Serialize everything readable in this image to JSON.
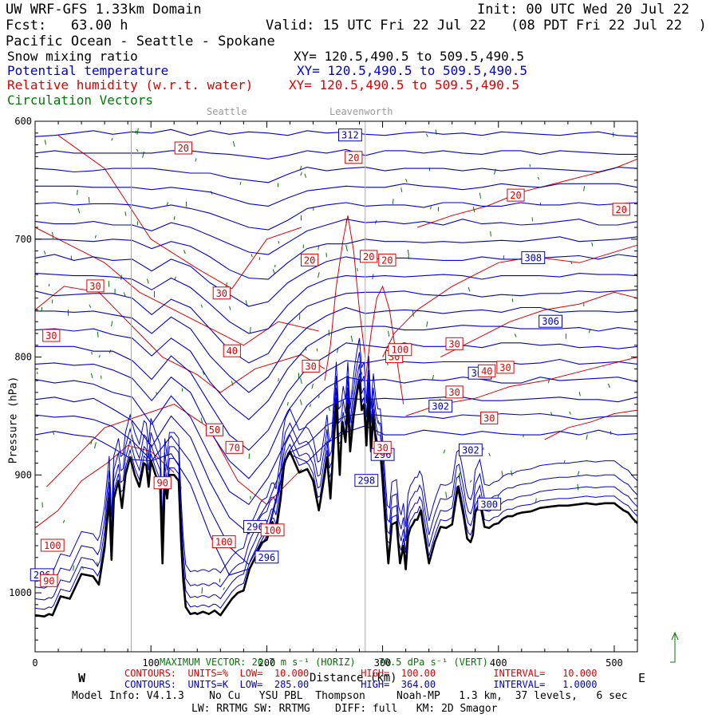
{
  "header": {
    "title": "UW WRF-GFS 1.33km Domain",
    "init": "Init: 00 UTC Wed 20 Jul 22",
    "fcst": "Fcst:   63.00 h",
    "valid": "Valid: 15 UTC Fri 22 Jul 22   (08 PDT Fri 22 Jul 22  )",
    "region": "Pacific Ocean - Seattle - Spokane",
    "fields": [
      {
        "name": "Snow mixing ratio",
        "xy": "XY= 120.5,490.5 to 509.5,490.5",
        "color": "#000000"
      },
      {
        "name": "Potential temperature",
        "xy": "XY= 120.5,490.5 to 509.5,490.5",
        "color": "#0000cc"
      },
      {
        "name": "Relative humidity (w.r.t. water)",
        "xy": "XY= 120.5,490.5 to 509.5,490.5",
        "color": "#dd0000"
      },
      {
        "name": "Circulation Vectors",
        "xy": "",
        "color": "#007700"
      }
    ]
  },
  "markers": [
    {
      "label": "Seattle",
      "x": 83
    },
    {
      "label": "Leavenworth",
      "x": 285
    }
  ],
  "compass": {
    "west": "W",
    "east": "E"
  },
  "colors": {
    "theta": "#0000cc",
    "rh": "#dd0000",
    "vectors": "#007700",
    "terrain": "#000000",
    "marker": "#aaaaaa"
  },
  "footer": {
    "max_vector": "MAXIMUM VECTOR: 20.7 m s⁻¹ (HORIZ)    70.5 dPa s⁻¹ (VERT)",
    "rh_contours": "CONTOURS:  UNITS=%  LOW=  10.000         HIGH=  100.00          INTERVAL=   10.000",
    "theta_contours": "CONTOURS:  UNITS=K  LOW=  285.00         HIGH=  364.00          INTERVAL=   1.0000",
    "model_info": "Model Info: V4.1.3    No Cu   YSU PBL  Thompson     Noah-MP   1.3 km,  37 levels,   6 sec",
    "physics": "LW: RRTMG SW: RRTMG    DIFF: full   KM: 2D Smagor"
  },
  "chart_data": {
    "type": "cross-section",
    "xlabel": "Distance (km)",
    "ylabel": "Pressure (hPa)",
    "xlim": [
      0,
      520
    ],
    "ylim": [
      1050,
      600
    ],
    "y_log": false,
    "x_ticks": [
      0,
      100,
      200,
      300,
      400,
      500
    ],
    "y_ticks": [
      600,
      700,
      800,
      900,
      1000
    ],
    "grid": false,
    "terrain": {
      "x": [
        0,
        8,
        12,
        15,
        22,
        30,
        40,
        50,
        55,
        60,
        64,
        66,
        68,
        72,
        75,
        78,
        82,
        86,
        90,
        94,
        96,
        98,
        100,
        104,
        108,
        110,
        112,
        114,
        116,
        120,
        124,
        126,
        128,
        130,
        134,
        138,
        140,
        145,
        150,
        155,
        160,
        165,
        170,
        175,
        180,
        185,
        190,
        195,
        200,
        205,
        208,
        212,
        215,
        220,
        228,
        235,
        240,
        245,
        250,
        252,
        255,
        258,
        260,
        263,
        265,
        268,
        270,
        272,
        275,
        278,
        280,
        282,
        284,
        286,
        288,
        290,
        292,
        294,
        296,
        298,
        300,
        302,
        305,
        308,
        312,
        315,
        318,
        320,
        322,
        324,
        326,
        328,
        330,
        333,
        336,
        340,
        345,
        350,
        355,
        360,
        365,
        370,
        373,
        376,
        378,
        380,
        384,
        388,
        392,
        396,
        400,
        404,
        408,
        412,
        416,
        420,
        428,
        436,
        444,
        452,
        460,
        468,
        476,
        484,
        492,
        500,
        508,
        512,
        516,
        520
      ],
      "p": [
        1019,
        1020,
        1018,
        1019,
        1003,
        1005,
        984,
        986,
        993,
        962,
        920,
        972,
        920,
        905,
        928,
        900,
        885,
        900,
        910,
        890,
        892,
        910,
        888,
        900,
        910,
        975,
        905,
        920,
        900,
        900,
        905,
        955,
        990,
        1012,
        1018,
        1017,
        1018,
        1016,
        1018,
        1015,
        1019,
        1012,
        1005,
        1000,
        998,
        980,
        970,
        958,
        955,
        940,
        948,
        920,
        890,
        880,
        898,
        895,
        905,
        930,
        900,
        885,
        920,
        870,
        840,
        900,
        855,
        872,
        840,
        880,
        850,
        830,
        820,
        845,
        840,
        875,
        835,
        880,
        850,
        870,
        880,
        880,
        905,
        935,
        975,
        942,
        940,
        975,
        960,
        980,
        952,
        945,
        942,
        938,
        938,
        930,
        950,
        975,
        957,
        944,
        945,
        942,
        910,
        935,
        954,
        957,
        951,
        932,
        923,
        944,
        945,
        942,
        941,
        937,
        935,
        935,
        933,
        932,
        931,
        928,
        927,
        926,
        926,
        925,
        924,
        925,
        924,
        924,
        930,
        932,
        937,
        941
      ]
    },
    "theta_contour_labels": [
      312,
      308,
      306,
      304,
      302,
      302,
      300,
      298,
      296,
      296,
      296,
      296
    ],
    "rh_contour_labels": [
      20,
      20,
      20,
      20,
      20,
      20,
      20,
      30,
      30,
      30,
      30,
      30,
      30,
      30,
      30,
      30,
      30,
      40,
      40,
      50,
      70,
      90,
      90,
      100,
      100,
      100,
      100
    ],
    "isentropes": [
      {
        "theta": 312,
        "p": [
          613,
          612,
          610,
          608,
          611,
          609,
          610,
          607,
          612,
          608,
          611,
          609,
          610,
          612,
          608,
          610,
          609,
          611,
          612,
          610,
          609,
          611,
          610,
          612,
          609,
          610,
          611,
          612,
          610,
          609,
          612,
          613
        ]
      },
      {
        "theta": 311,
        "p": [
          627,
          625,
          627,
          627,
          627,
          627,
          627,
          625,
          625,
          627,
          628,
          630,
          632,
          629,
          625,
          627,
          624,
          629,
          625,
          625,
          627,
          625,
          627,
          628,
          625,
          625,
          628,
          625,
          626,
          627,
          628,
          628
        ]
      },
      {
        "theta": 310,
        "p": [
          640,
          641,
          643,
          642,
          640,
          640,
          640,
          642,
          644,
          644,
          648,
          650,
          652,
          645,
          639,
          642,
          640,
          639,
          642,
          640,
          640,
          640,
          642,
          640,
          642,
          640,
          640,
          641,
          642,
          643,
          639,
          640
        ]
      },
      {
        "theta": 309,
        "p": [
          655,
          655,
          655,
          656,
          656,
          656,
          658,
          656,
          658,
          660,
          665,
          670,
          672,
          665,
          659,
          657,
          655,
          656,
          656,
          653,
          655,
          656,
          658,
          656,
          653,
          655,
          656,
          653,
          653,
          653,
          653,
          656
        ]
      },
      {
        "theta": 308,
        "p": [
          670,
          669,
          671,
          670,
          670,
          671,
          674,
          671,
          674,
          678,
          684,
          690,
          692,
          684,
          674,
          671,
          669,
          672,
          671,
          671,
          673,
          669,
          669,
          672,
          672,
          669,
          671,
          671,
          669,
          671,
          670,
          669
        ]
      },
      {
        "theta": 307,
        "p": [
          685,
          687,
          687,
          685,
          688,
          688,
          693,
          686,
          690,
          697,
          704,
          711,
          713,
          703,
          693,
          688,
          683,
          686,
          685,
          687,
          685,
          688,
          683,
          687,
          686,
          688,
          687,
          685,
          683,
          688,
          688,
          685
        ]
      },
      {
        "theta": 306,
        "p": [
          700,
          700,
          701,
          702,
          700,
          701,
          708,
          702,
          706,
          715,
          726,
          733,
          734,
          720,
          708,
          704,
          704,
          700,
          702,
          702,
          703,
          702,
          703,
          702,
          701,
          702,
          700,
          698,
          702,
          701,
          700,
          698
        ]
      },
      {
        "theta": 305,
        "p": [
          716,
          713,
          718,
          715,
          718,
          717,
          727,
          717,
          723,
          737,
          747,
          757,
          753,
          737,
          727,
          719,
          715,
          718,
          716,
          716,
          717,
          718,
          718,
          715,
          717,
          717,
          716,
          715,
          714,
          717,
          713,
          715
        ]
      },
      {
        "theta": 304,
        "p": [
          729,
          730,
          731,
          731,
          732,
          734,
          743,
          733,
          741,
          755,
          770,
          780,
          776,
          756,
          741,
          734,
          731,
          732,
          731,
          732,
          731,
          730,
          731,
          734,
          731,
          731,
          731,
          732,
          729,
          730,
          730,
          731
        ]
      },
      {
        "theta": 303,
        "p": [
          744,
          748,
          747,
          746,
          746,
          750,
          764,
          751,
          758,
          776,
          794,
          805,
          797,
          772,
          757,
          751,
          746,
          745,
          745,
          744,
          747,
          748,
          746,
          749,
          747,
          748,
          746,
          746,
          744,
          745,
          744,
          743
        ]
      },
      {
        "theta": 302,
        "p": [
          761,
          761,
          762,
          761,
          764,
          767,
          780,
          766,
          776,
          799,
          816,
          830,
          817,
          791,
          775,
          765,
          758,
          763,
          761,
          760,
          761,
          763,
          761,
          760,
          762,
          758,
          758,
          762,
          761,
          761,
          762,
          761
        ]
      },
      {
        "theta": 301,
        "p": [
          777,
          776,
          778,
          776,
          781,
          784,
          799,
          784,
          795,
          821,
          840,
          853,
          837,
          810,
          791,
          781,
          775,
          774,
          774,
          777,
          777,
          775,
          773,
          774,
          774,
          776,
          776,
          776,
          775,
          778,
          775,
          777
        ]
      },
      {
        "theta": 300,
        "p": [
          791,
          791,
          791,
          795,
          795,
          803,
          819,
          799,
          813,
          840,
          866,
          879,
          862,
          830,
          809,
          799,
          788,
          790,
          792,
          788,
          791,
          791,
          790,
          792,
          788,
          788,
          790,
          789,
          792,
          791,
          793,
          791
        ]
      },
      {
        "theta": 299,
        "p": [
          806,
          805,
          807,
          806,
          811,
          818,
          837,
          817,
          830,
          863,
          888,
          903,
          883,
          846,
          824,
          812,
          803,
          805,
          802,
          804,
          805,
          804,
          804,
          804,
          804,
          806,
          805,
          802,
          806,
          805,
          804,
          806
        ]
      },
      {
        "theta": 298,
        "p": [
          819,
          822,
          820,
          823,
          830,
          834,
          857,
          833,
          851,
          884,
          914,
          925,
          902,
          868,
          841,
          826,
          817,
          820,
          819,
          822,
          819,
          820,
          817,
          819,
          822,
          822,
          817,
          820,
          819,
          818,
          817,
          821
        ]
      },
      {
        "theta": 297,
        "p": [
          836,
          834,
          838,
          835,
          844,
          854,
          876,
          850,
          868,
          906,
          936,
          950,
          923,
          884,
          857,
          843,
          835,
          836,
          835,
          836,
          835,
          834,
          834,
          837,
          837,
          836,
          835,
          834,
          836,
          836,
          838,
          834
        ]
      },
      {
        "theta": 296,
        "p": [
          849,
          851,
          850,
          853,
          859,
          871,
          896,
          867,
          889,
          929,
          961,
          976,
          945,
          904,
          874,
          858,
          850,
          848,
          850,
          851,
          850,
          852,
          849,
          850,
          848,
          849,
          848,
          850,
          853,
          851,
          850,
          850
        ]
      },
      {
        "theta": 295,
        "p": [
          866,
          863,
          866,
          868,
          877,
          887,
          914,
          882,
          908,
          951,
          985,
          999,
          965,
          922,
          889,
          873,
          866,
          864,
          866,
          866,
          862,
          864,
          866,
          863,
          865,
          866,
          866,
          863,
          866,
          862,
          866,
          865
        ]
      }
    ]
  }
}
